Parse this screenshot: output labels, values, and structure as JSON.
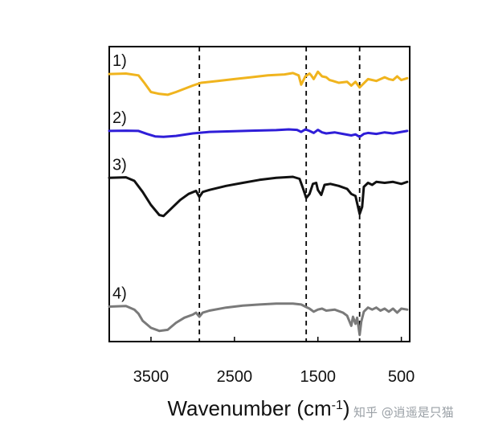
{
  "chart_data": {
    "type": "line",
    "xlabel": "Wavenumber (cm",
    "xlabel_sup": "-1",
    "xlabel_end": ")",
    "ylabel": "",
    "xlim": [
      4000,
      400
    ],
    "x_reversed": true,
    "ylim": [
      0,
      100
    ],
    "y_ticks_shown": false,
    "x_ticks": [
      3500,
      2500,
      1500,
      500
    ],
    "x_tick_labels": [
      "3500",
      "2500",
      "1500",
      "500"
    ],
    "reference_lines_x": [
      2920,
      1640,
      1000
    ],
    "reference_line_style": "dashed",
    "grid": false,
    "legend": "none",
    "series": [
      {
        "label": "1)",
        "color": "#F0B41E",
        "points": [
          [
            4000,
            89.5
          ],
          [
            3800,
            90
          ],
          [
            3650,
            88
          ],
          [
            3580,
            80
          ],
          [
            3500,
            70
          ],
          [
            3400,
            68
          ],
          [
            3300,
            67
          ],
          [
            3200,
            70
          ],
          [
            3000,
            77
          ],
          [
            2900,
            80
          ],
          [
            2700,
            82
          ],
          [
            2500,
            84
          ],
          [
            2300,
            86
          ],
          [
            2100,
            88
          ],
          [
            1900,
            89
          ],
          [
            1800,
            90.5
          ],
          [
            1730,
            88
          ],
          [
            1700,
            78
          ],
          [
            1650,
            87
          ],
          [
            1600,
            90
          ],
          [
            1580,
            88
          ],
          [
            1550,
            84
          ],
          [
            1500,
            92
          ],
          [
            1450,
            87
          ],
          [
            1400,
            86
          ],
          [
            1360,
            83
          ],
          [
            1320,
            82
          ],
          [
            1250,
            80
          ],
          [
            1150,
            81
          ],
          [
            1100,
            77
          ],
          [
            1050,
            81
          ],
          [
            1000,
            75
          ],
          [
            900,
            84
          ],
          [
            800,
            82
          ],
          [
            700,
            86
          ],
          [
            650,
            84
          ],
          [
            600,
            83
          ],
          [
            550,
            87
          ],
          [
            500,
            83
          ],
          [
            430,
            85
          ]
        ]
      },
      {
        "label": "2)",
        "color": "#2F1ED8",
        "points": [
          [
            4000,
            76
          ],
          [
            3800,
            76.5
          ],
          [
            3650,
            76
          ],
          [
            3550,
            70
          ],
          [
            3450,
            65
          ],
          [
            3350,
            64
          ],
          [
            3200,
            66
          ],
          [
            3000,
            71
          ],
          [
            2800,
            74
          ],
          [
            2500,
            75.5
          ],
          [
            2300,
            76.5
          ],
          [
            2000,
            77.5
          ],
          [
            1850,
            79
          ],
          [
            1750,
            78
          ],
          [
            1700,
            74
          ],
          [
            1650,
            79
          ],
          [
            1600,
            76
          ],
          [
            1550,
            72
          ],
          [
            1500,
            78
          ],
          [
            1450,
            73
          ],
          [
            1400,
            71
          ],
          [
            1300,
            73
          ],
          [
            1200,
            70
          ],
          [
            1100,
            67
          ],
          [
            1050,
            69
          ],
          [
            1000,
            64
          ],
          [
            950,
            70
          ],
          [
            900,
            72
          ],
          [
            800,
            70
          ],
          [
            700,
            73
          ],
          [
            600,
            71
          ],
          [
            500,
            74
          ],
          [
            430,
            76
          ]
        ]
      },
      {
        "label": "3)",
        "color": "#111111",
        "points": [
          [
            4000,
            67
          ],
          [
            3800,
            67.5
          ],
          [
            3700,
            64
          ],
          [
            3600,
            53
          ],
          [
            3500,
            40
          ],
          [
            3400,
            30
          ],
          [
            3350,
            29
          ],
          [
            3250,
            37
          ],
          [
            3150,
            45
          ],
          [
            3050,
            51
          ],
          [
            2960,
            54
          ],
          [
            2920,
            48
          ],
          [
            2880,
            53
          ],
          [
            2800,
            55
          ],
          [
            2600,
            59
          ],
          [
            2400,
            62
          ],
          [
            2200,
            65
          ],
          [
            2000,
            67
          ],
          [
            1800,
            68
          ],
          [
            1720,
            66
          ],
          [
            1680,
            57
          ],
          [
            1640,
            47
          ],
          [
            1600,
            51
          ],
          [
            1560,
            61
          ],
          [
            1520,
            62
          ],
          [
            1500,
            55
          ],
          [
            1460,
            50
          ],
          [
            1420,
            60
          ],
          [
            1350,
            61
          ],
          [
            1250,
            59
          ],
          [
            1150,
            56
          ],
          [
            1100,
            51
          ],
          [
            1050,
            49
          ],
          [
            1000,
            31
          ],
          [
            970,
            38
          ],
          [
            950,
            58
          ],
          [
            900,
            62
          ],
          [
            850,
            60
          ],
          [
            800,
            63
          ],
          [
            700,
            62
          ],
          [
            600,
            63
          ],
          [
            500,
            61
          ],
          [
            430,
            63
          ]
        ]
      },
      {
        "label": "4)",
        "color": "#7A7A7A",
        "points": [
          [
            4000,
            29
          ],
          [
            3800,
            29.5
          ],
          [
            3700,
            26
          ],
          [
            3650,
            22
          ],
          [
            3600,
            15
          ],
          [
            3500,
            8
          ],
          [
            3400,
            5
          ],
          [
            3300,
            6
          ],
          [
            3200,
            13
          ],
          [
            3100,
            18
          ],
          [
            3000,
            21
          ],
          [
            2960,
            23
          ],
          [
            2920,
            19
          ],
          [
            2880,
            23
          ],
          [
            2800,
            25
          ],
          [
            2600,
            28
          ],
          [
            2400,
            30
          ],
          [
            2200,
            31
          ],
          [
            2000,
            32
          ],
          [
            1800,
            32
          ],
          [
            1700,
            31
          ],
          [
            1650,
            29
          ],
          [
            1600,
            27
          ],
          [
            1550,
            24
          ],
          [
            1500,
            26
          ],
          [
            1450,
            27
          ],
          [
            1400,
            25
          ],
          [
            1300,
            26
          ],
          [
            1200,
            23
          ],
          [
            1150,
            20
          ],
          [
            1100,
            10
          ],
          [
            1080,
            19
          ],
          [
            1050,
            12
          ],
          [
            1030,
            18
          ],
          [
            1000,
            1
          ],
          [
            980,
            14
          ],
          [
            950,
            24
          ],
          [
            900,
            28
          ],
          [
            850,
            26
          ],
          [
            800,
            28
          ],
          [
            750,
            25
          ],
          [
            700,
            27
          ],
          [
            650,
            24
          ],
          [
            600,
            27
          ],
          [
            550,
            23
          ],
          [
            500,
            27
          ],
          [
            430,
            26
          ]
        ]
      }
    ]
  },
  "watermark": {
    "text": "知乎 @逍遥是只猫"
  }
}
